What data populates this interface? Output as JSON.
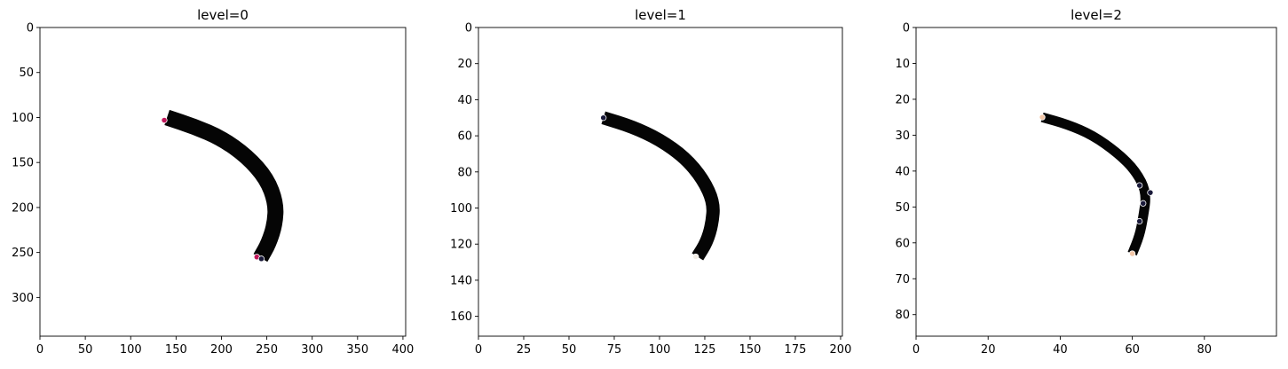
{
  "chart_data": [
    {
      "type": "scatter",
      "title": "level=0",
      "xlabel": "",
      "ylabel": "",
      "xlim": [
        0,
        403
      ],
      "ylim": [
        343,
        0
      ],
      "xticks": [
        0,
        50,
        100,
        150,
        200,
        250,
        300,
        350,
        400
      ],
      "yticks": [
        0,
        50,
        100,
        150,
        200,
        250,
        300
      ],
      "curve": {
        "color": "#000000",
        "points": [
          [
            140,
            100
          ],
          [
            170,
            110
          ],
          [
            200,
            123
          ],
          [
            228,
            143
          ],
          [
            250,
            168
          ],
          [
            260,
            195
          ],
          [
            259,
            218
          ],
          [
            252,
            240
          ],
          [
            243,
            256
          ]
        ]
      },
      "markers": [
        {
          "x": 137,
          "y": 103,
          "color": "#c2185b"
        },
        {
          "x": 239,
          "y": 255,
          "color": "#c2185b"
        },
        {
          "x": 244,
          "y": 257,
          "color": "#1a1a3a"
        }
      ]
    },
    {
      "type": "scatter",
      "title": "level=1",
      "xlabel": "",
      "ylabel": "",
      "xlim": [
        0,
        201
      ],
      "ylim": [
        171,
        0
      ],
      "xticks": [
        0,
        25,
        50,
        75,
        100,
        125,
        150,
        175,
        200
      ],
      "yticks": [
        0,
        20,
        40,
        60,
        80,
        100,
        120,
        140,
        160
      ],
      "curve": {
        "color": "#000000",
        "points": [
          [
            69,
            50
          ],
          [
            85,
            55
          ],
          [
            100,
            62
          ],
          [
            114,
            72
          ],
          [
            124,
            84
          ],
          [
            130,
            97
          ],
          [
            129,
            109
          ],
          [
            126,
            119
          ],
          [
            121,
            127
          ]
        ]
      },
      "markers": [
        {
          "x": 69,
          "y": 50,
          "color": "#1a1a3a"
        },
        {
          "x": 120,
          "y": 127,
          "color": "#f2ede6"
        }
      ]
    },
    {
      "type": "scatter",
      "title": "level=2",
      "xlabel": "",
      "ylabel": "",
      "xlim": [
        0,
        100
      ],
      "ylim": [
        86,
        0
      ],
      "xticks": [
        0,
        20,
        40,
        60,
        80
      ],
      "yticks": [
        0,
        10,
        20,
        30,
        40,
        50,
        60,
        70,
        80
      ],
      "curve": {
        "color": "#000000",
        "points": [
          [
            35,
            25
          ],
          [
            42,
            27
          ],
          [
            49,
            30
          ],
          [
            56,
            35
          ],
          [
            61,
            40
          ],
          [
            64,
            46
          ],
          [
            63,
            53
          ],
          [
            62,
            58
          ],
          [
            60,
            63
          ]
        ]
      },
      "markers": [
        {
          "x": 35,
          "y": 25,
          "color": "#f3c7a8"
        },
        {
          "x": 60,
          "y": 63,
          "color": "#f3c7a8"
        },
        {
          "x": 62,
          "y": 44,
          "color": "#1a1a3a"
        },
        {
          "x": 65,
          "y": 46,
          "color": "#1a1a3a"
        },
        {
          "x": 63,
          "y": 49,
          "color": "#1a1a3a"
        },
        {
          "x": 62,
          "y": 54,
          "color": "#1a1a3a"
        }
      ]
    }
  ]
}
